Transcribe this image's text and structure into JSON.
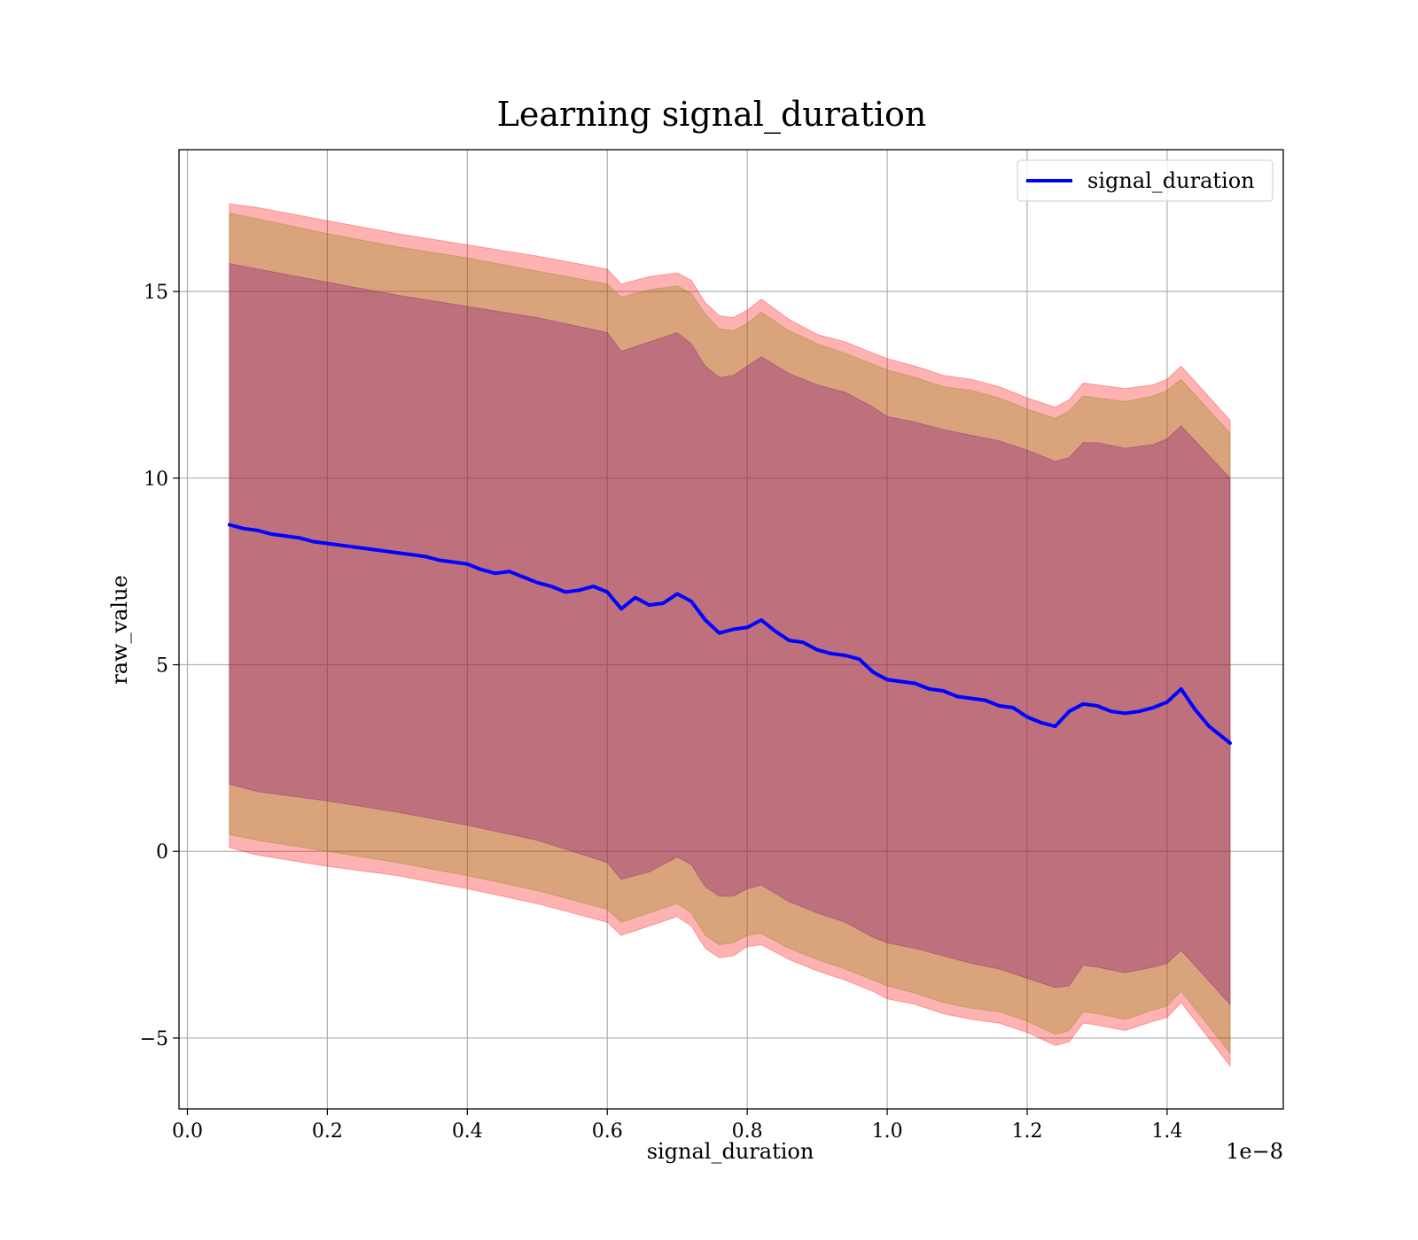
{
  "chart_data": {
    "type": "line",
    "title": "Learning signal_duration",
    "xlabel": "signal_duration",
    "ylabel": "raw_value",
    "x_offset_text": "1e−8",
    "xlim": [
      -0.012,
      1.566
    ],
    "ylim": [
      -6.9,
      18.8
    ],
    "x_ticks": [
      0.0,
      0.2,
      0.4,
      0.6,
      0.8,
      1.0,
      1.2,
      1.4
    ],
    "x_tick_labels": [
      "0.0",
      "0.2",
      "0.4",
      "0.6",
      "0.8",
      "1.0",
      "1.2",
      "1.4"
    ],
    "y_ticks": [
      -5,
      0,
      5,
      10,
      15
    ],
    "y_tick_labels": [
      "−5",
      "0",
      "5",
      "10",
      "15"
    ],
    "grid": true,
    "legend_position": "top-right",
    "series": [
      {
        "name": "signal_duration",
        "color": "#0000ff",
        "x": [
          0.06,
          0.08,
          0.1,
          0.12,
          0.14,
          0.16,
          0.18,
          0.2,
          0.22,
          0.24,
          0.26,
          0.28,
          0.3,
          0.32,
          0.34,
          0.36,
          0.38,
          0.4,
          0.42,
          0.44,
          0.46,
          0.48,
          0.5,
          0.52,
          0.54,
          0.56,
          0.58,
          0.6,
          0.62,
          0.64,
          0.66,
          0.68,
          0.7,
          0.72,
          0.74,
          0.76,
          0.78,
          0.8,
          0.82,
          0.84,
          0.86,
          0.88,
          0.9,
          0.92,
          0.94,
          0.96,
          0.98,
          1.0,
          1.02,
          1.04,
          1.06,
          1.08,
          1.1,
          1.12,
          1.14,
          1.16,
          1.18,
          1.2,
          1.22,
          1.24,
          1.26,
          1.28,
          1.3,
          1.32,
          1.34,
          1.36,
          1.38,
          1.4,
          1.42,
          1.44,
          1.46,
          1.49
        ],
        "values": [
          8.75,
          8.65,
          8.6,
          8.5,
          8.45,
          8.4,
          8.3,
          8.25,
          8.2,
          8.15,
          8.1,
          8.05,
          8.0,
          7.95,
          7.9,
          7.8,
          7.75,
          7.7,
          7.55,
          7.45,
          7.5,
          7.35,
          7.2,
          7.1,
          6.95,
          7.0,
          7.1,
          6.95,
          6.5,
          6.8,
          6.6,
          6.65,
          6.9,
          6.7,
          6.2,
          5.85,
          5.95,
          6.0,
          6.2,
          5.9,
          5.65,
          5.6,
          5.4,
          5.3,
          5.25,
          5.15,
          4.8,
          4.6,
          4.55,
          4.5,
          4.35,
          4.3,
          4.15,
          4.1,
          4.05,
          3.9,
          3.85,
          3.6,
          3.45,
          3.35,
          3.75,
          3.95,
          3.9,
          3.75,
          3.7,
          3.75,
          3.85,
          4.0,
          4.35,
          3.8,
          3.35,
          2.9
        ]
      }
    ],
    "bands": [
      {
        "color": "#ff0000",
        "opacity": 0.3,
        "x": [
          0.06,
          0.1,
          0.2,
          0.3,
          0.4,
          0.5,
          0.6,
          0.62,
          0.66,
          0.7,
          0.72,
          0.74,
          0.76,
          0.78,
          0.8,
          0.82,
          0.86,
          0.9,
          0.94,
          0.98,
          1.0,
          1.04,
          1.08,
          1.12,
          1.16,
          1.2,
          1.24,
          1.26,
          1.28,
          1.3,
          1.34,
          1.38,
          1.4,
          1.42,
          1.49
        ],
        "upper": [
          17.35,
          17.25,
          16.9,
          16.55,
          16.25,
          15.95,
          15.6,
          15.2,
          15.4,
          15.5,
          15.3,
          14.7,
          14.35,
          14.3,
          14.5,
          14.8,
          14.25,
          13.85,
          13.65,
          13.35,
          13.2,
          13.0,
          12.75,
          12.65,
          12.45,
          12.15,
          11.9,
          12.1,
          12.55,
          12.5,
          12.4,
          12.5,
          12.65,
          13.0,
          11.55
        ],
        "lower": [
          0.1,
          -0.1,
          -0.4,
          -0.65,
          -1.0,
          -1.4,
          -1.9,
          -2.25,
          -2.0,
          -1.75,
          -2.0,
          -2.6,
          -2.85,
          -2.8,
          -2.55,
          -2.5,
          -2.9,
          -3.2,
          -3.45,
          -3.75,
          -3.95,
          -4.1,
          -4.35,
          -4.5,
          -4.6,
          -4.85,
          -5.2,
          -5.1,
          -4.6,
          -4.65,
          -4.8,
          -4.55,
          -4.45,
          -4.05,
          -5.75
        ]
      },
      {
        "color": "#808000",
        "opacity": 0.3,
        "x": [
          0.06,
          0.1,
          0.2,
          0.3,
          0.4,
          0.5,
          0.6,
          0.62,
          0.66,
          0.7,
          0.72,
          0.74,
          0.76,
          0.78,
          0.8,
          0.82,
          0.86,
          0.9,
          0.94,
          0.98,
          1.0,
          1.04,
          1.08,
          1.12,
          1.16,
          1.2,
          1.24,
          1.26,
          1.28,
          1.3,
          1.34,
          1.38,
          1.4,
          1.42,
          1.49
        ],
        "upper": [
          17.1,
          16.95,
          16.55,
          16.2,
          15.9,
          15.55,
          15.2,
          14.85,
          15.05,
          15.15,
          14.95,
          14.4,
          14.0,
          13.95,
          14.15,
          14.45,
          13.95,
          13.6,
          13.35,
          13.05,
          12.9,
          12.7,
          12.45,
          12.35,
          12.15,
          11.85,
          11.6,
          11.8,
          12.2,
          12.15,
          12.05,
          12.2,
          12.35,
          12.65,
          11.2
        ],
        "lower": [
          0.45,
          0.3,
          0.0,
          -0.3,
          -0.65,
          -1.05,
          -1.55,
          -1.9,
          -1.65,
          -1.4,
          -1.65,
          -2.25,
          -2.5,
          -2.45,
          -2.25,
          -2.2,
          -2.6,
          -2.9,
          -3.15,
          -3.45,
          -3.6,
          -3.8,
          -4.05,
          -4.2,
          -4.3,
          -4.55,
          -4.9,
          -4.8,
          -4.3,
          -4.35,
          -4.5,
          -4.25,
          -4.15,
          -3.75,
          -5.4
        ]
      },
      {
        "color": "#800080",
        "opacity": 0.3,
        "x": [
          0.06,
          0.1,
          0.2,
          0.3,
          0.4,
          0.5,
          0.6,
          0.62,
          0.66,
          0.7,
          0.72,
          0.74,
          0.76,
          0.78,
          0.8,
          0.82,
          0.86,
          0.9,
          0.94,
          0.98,
          1.0,
          1.04,
          1.08,
          1.12,
          1.16,
          1.2,
          1.24,
          1.26,
          1.28,
          1.3,
          1.34,
          1.38,
          1.4,
          1.42,
          1.49
        ],
        "upper": [
          15.75,
          15.6,
          15.25,
          14.9,
          14.6,
          14.3,
          13.9,
          13.4,
          13.65,
          13.9,
          13.6,
          13.0,
          12.7,
          12.75,
          13.0,
          13.25,
          12.8,
          12.5,
          12.3,
          11.9,
          11.65,
          11.5,
          11.3,
          11.15,
          11.0,
          10.75,
          10.45,
          10.55,
          10.95,
          10.95,
          10.8,
          10.9,
          11.05,
          11.4,
          10.0
        ],
        "lower": [
          1.8,
          1.6,
          1.35,
          1.05,
          0.7,
          0.3,
          -0.3,
          -0.75,
          -0.55,
          -0.15,
          -0.35,
          -0.95,
          -1.2,
          -1.2,
          -1.0,
          -0.9,
          -1.35,
          -1.65,
          -1.9,
          -2.3,
          -2.45,
          -2.6,
          -2.8,
          -3.0,
          -3.15,
          -3.4,
          -3.65,
          -3.6,
          -3.05,
          -3.1,
          -3.25,
          -3.1,
          -3.0,
          -2.65,
          -4.1
        ]
      }
    ]
  }
}
